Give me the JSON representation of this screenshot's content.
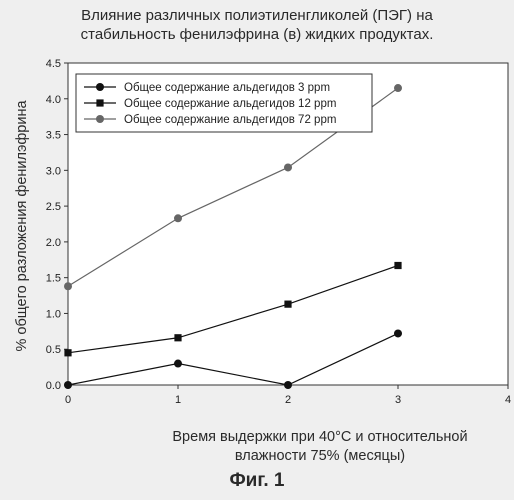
{
  "title_line1": "Влияние различных полиэтиленгликолей (ПЭГ) на",
  "title_line2": "стабильность фенилэфрина (в) жидких продуктах.",
  "xlabel_line1": "Время выдержки при 40°С и относительной",
  "xlabel_line2": "влажности 75% (месяцы)",
  "ylabel": "% общего разложения фенилэфрина",
  "figure_caption": "Фиг. 1",
  "chart_data": {
    "type": "line",
    "x_ticks": [
      0,
      1,
      2,
      3,
      4
    ],
    "y_ticks": [
      "0.0",
      "0.5",
      "1.0",
      "1.5",
      "2.0",
      "2.5",
      "3.0",
      "3.5",
      "4.0",
      "4.5"
    ],
    "xlim": [
      0,
      4
    ],
    "ylim": [
      0,
      4.5
    ],
    "grid": false,
    "legend_position": "top-left",
    "series": [
      {
        "name": "Общее содержание альдегидов 3 ppm",
        "marker": "circle",
        "color": "#111111",
        "x": [
          0,
          1,
          2,
          3
        ],
        "y": [
          0.0,
          0.3,
          0.0,
          0.72
        ]
      },
      {
        "name": "Общее содержание альдегидов 12 ppm",
        "marker": "square",
        "color": "#111111",
        "x": [
          0,
          1,
          2,
          3
        ],
        "y": [
          0.45,
          0.66,
          1.13,
          1.67
        ]
      },
      {
        "name": "Общее содержание альдегидов 72 ppm",
        "marker": "circle",
        "color": "#666666",
        "x": [
          0,
          1,
          2,
          3
        ],
        "y": [
          1.38,
          2.33,
          3.04,
          4.15
        ]
      }
    ]
  }
}
